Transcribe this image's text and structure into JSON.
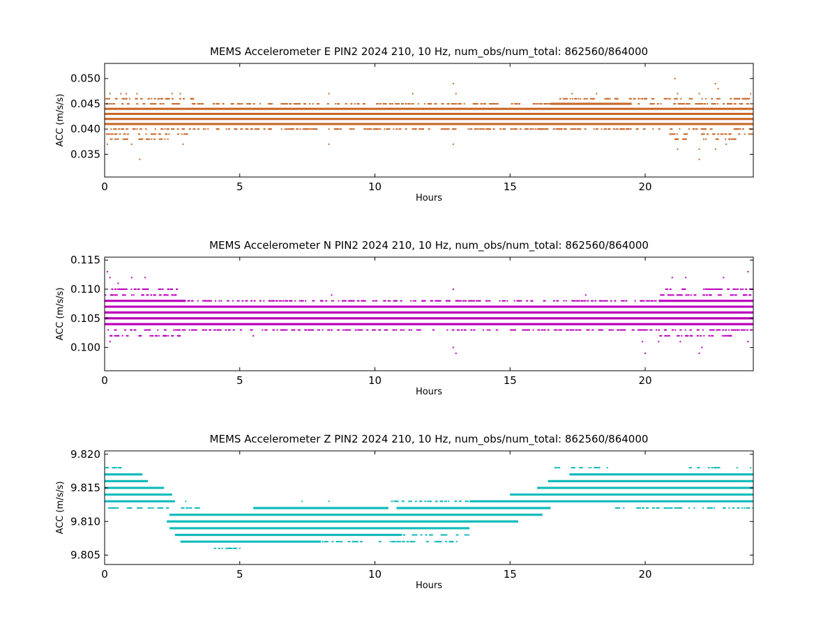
{
  "chart_data": [
    {
      "type": "scatter",
      "title": "MEMS Accelerometer E PIN2 2024 210, 10 Hz, num_obs/num_total: 862560/864000",
      "xlabel": "Hours",
      "ylabel": "ACC (m/s/s)",
      "xlim": [
        0,
        24
      ],
      "ylim": [
        0.0305,
        0.053
      ],
      "xticks": [
        0,
        5,
        10,
        15,
        20
      ],
      "yticks": [
        "0.035",
        "0.040",
        "0.045",
        "0.050"
      ],
      "color": "#c8682a",
      "grid": false,
      "dense_bands": [
        {
          "y": 0.041,
          "x": [
            0,
            24
          ]
        },
        {
          "y": 0.042,
          "x": [
            0,
            24
          ]
        },
        {
          "y": 0.043,
          "x": [
            0,
            24
          ]
        },
        {
          "y": 0.044,
          "x": [
            0,
            24
          ]
        },
        {
          "y": 0.045,
          "x": [
            16.5,
            19.5
          ]
        }
      ],
      "sparse_bands": [
        {
          "y": 0.04,
          "x": [
            0,
            24
          ]
        },
        {
          "y": 0.045,
          "x": [
            0,
            24
          ]
        },
        {
          "y": 0.039,
          "x": [
            0,
            3
          ]
        },
        {
          "y": 0.039,
          "x": [
            20.8,
            24
          ]
        },
        {
          "y": 0.046,
          "x": [
            0,
            3.5
          ]
        },
        {
          "y": 0.046,
          "x": [
            16.8,
            24
          ]
        },
        {
          "y": 0.038,
          "x": [
            0,
            2.5
          ]
        },
        {
          "y": 0.038,
          "x": [
            21,
            23.5
          ]
        }
      ],
      "outliers": [
        {
          "x": 0.2,
          "y": 0.047
        },
        {
          "x": 0.6,
          "y": 0.047
        },
        {
          "x": 0.8,
          "y": 0.047
        },
        {
          "x": 1.2,
          "y": 0.047
        },
        {
          "x": 1.3,
          "y": 0.034
        },
        {
          "x": 1.0,
          "y": 0.037
        },
        {
          "x": 0.1,
          "y": 0.037
        },
        {
          "x": 2.5,
          "y": 0.047
        },
        {
          "x": 2.8,
          "y": 0.047
        },
        {
          "x": 2.9,
          "y": 0.037
        },
        {
          "x": 8.3,
          "y": 0.047
        },
        {
          "x": 8.3,
          "y": 0.037
        },
        {
          "x": 11.4,
          "y": 0.047
        },
        {
          "x": 12.9,
          "y": 0.049
        },
        {
          "x": 12.9,
          "y": 0.037
        },
        {
          "x": 13.0,
          "y": 0.047
        },
        {
          "x": 17.3,
          "y": 0.047
        },
        {
          "x": 18.2,
          "y": 0.047
        },
        {
          "x": 21.1,
          "y": 0.05
        },
        {
          "x": 21.2,
          "y": 0.036
        },
        {
          "x": 21.2,
          "y": 0.047
        },
        {
          "x": 22.0,
          "y": 0.034
        },
        {
          "x": 22.0,
          "y": 0.036
        },
        {
          "x": 22.0,
          "y": 0.047
        },
        {
          "x": 22.6,
          "y": 0.049
        },
        {
          "x": 22.6,
          "y": 0.036
        },
        {
          "x": 22.7,
          "y": 0.048
        },
        {
          "x": 23.0,
          "y": 0.037
        },
        {
          "x": 23.9,
          "y": 0.047
        }
      ]
    },
    {
      "type": "scatter",
      "title": "MEMS Accelerometer N PIN2 2024 210, 10 Hz, num_obs/num_total: 862560/864000",
      "xlabel": "Hours",
      "ylabel": "ACC (m/s/s)",
      "xlim": [
        0,
        24
      ],
      "ylim": [
        0.096,
        0.1155
      ],
      "xticks": [
        0,
        5,
        10,
        15,
        20
      ],
      "yticks": [
        "0.100",
        "0.105",
        "0.110",
        "0.115"
      ],
      "color": "#bb00bb",
      "grid": false,
      "dense_bands": [
        {
          "y": 0.104,
          "x": [
            0,
            24
          ]
        },
        {
          "y": 0.105,
          "x": [
            0,
            24
          ]
        },
        {
          "y": 0.106,
          "x": [
            0,
            24
          ]
        },
        {
          "y": 0.107,
          "x": [
            0,
            24
          ]
        },
        {
          "y": 0.108,
          "x": [
            0,
            3
          ],
          "fade": 4.5
        },
        {
          "y": 0.108,
          "x": [
            20.5,
            24
          ],
          "fade": 19
        }
      ],
      "sparse_bands": [
        {
          "y": 0.103,
          "x": [
            0,
            24
          ]
        },
        {
          "y": 0.108,
          "x": [
            0,
            24
          ]
        },
        {
          "y": 0.109,
          "x": [
            0,
            3
          ]
        },
        {
          "y": 0.109,
          "x": [
            20.5,
            24
          ]
        },
        {
          "y": 0.102,
          "x": [
            0,
            2.8
          ]
        },
        {
          "y": 0.102,
          "x": [
            20.5,
            23.2
          ]
        },
        {
          "y": 0.11,
          "x": [
            0,
            2.8
          ]
        },
        {
          "y": 0.11,
          "x": [
            20.5,
            24
          ]
        }
      ],
      "outliers": [
        {
          "x": 0.1,
          "y": 0.113
        },
        {
          "x": 0.2,
          "y": 0.112
        },
        {
          "x": 0.5,
          "y": 0.111
        },
        {
          "x": 1.0,
          "y": 0.112
        },
        {
          "x": 1.5,
          "y": 0.112
        },
        {
          "x": 0.2,
          "y": 0.101
        },
        {
          "x": 5.5,
          "y": 0.102
        },
        {
          "x": 8.4,
          "y": 0.109
        },
        {
          "x": 12.9,
          "y": 0.11
        },
        {
          "x": 12.9,
          "y": 0.1
        },
        {
          "x": 13.0,
          "y": 0.099
        },
        {
          "x": 17.8,
          "y": 0.109
        },
        {
          "x": 19.9,
          "y": 0.101
        },
        {
          "x": 20.0,
          "y": 0.099
        },
        {
          "x": 20.5,
          "y": 0.101
        },
        {
          "x": 21.0,
          "y": 0.112
        },
        {
          "x": 21.3,
          "y": 0.101
        },
        {
          "x": 21.5,
          "y": 0.112
        },
        {
          "x": 22.0,
          "y": 0.099
        },
        {
          "x": 22.1,
          "y": 0.1
        },
        {
          "x": 22.9,
          "y": 0.112
        },
        {
          "x": 23.8,
          "y": 0.113
        },
        {
          "x": 23.8,
          "y": 0.101
        }
      ]
    },
    {
      "type": "scatter",
      "title": "MEMS Accelerometer Z PIN2 2024 210, 10 Hz, num_obs/num_total: 862560/864000",
      "xlabel": "Hours",
      "ylabel": "ACC (m/s/s)",
      "xlim": [
        0,
        24
      ],
      "ylim": [
        9.8036,
        9.8205
      ],
      "xticks": [
        0,
        5,
        10,
        15,
        20
      ],
      "yticks": [
        "9.805",
        "9.810",
        "9.815",
        "9.820"
      ],
      "color": "#11bbbb",
      "grid": false,
      "dense_bands": [
        {
          "y": 9.817,
          "x": [
            17.2,
            24
          ]
        },
        {
          "y": 9.816,
          "x": [
            16.4,
            24
          ]
        },
        {
          "y": 9.815,
          "x": [
            16.0,
            24
          ]
        },
        {
          "y": 9.814,
          "x": [
            15.0,
            24
          ]
        },
        {
          "y": 9.813,
          "x": [
            13.5,
            24
          ]
        },
        {
          "y": 9.812,
          "x": [
            10.8,
            16.5
          ]
        },
        {
          "y": 9.811,
          "x": [
            2.4,
            16.2
          ],
          "fade_low": 4
        },
        {
          "y": 9.81,
          "x": [
            2.3,
            15.3
          ]
        },
        {
          "y": 9.809,
          "x": [
            2.4,
            13.5
          ]
        },
        {
          "y": 9.808,
          "x": [
            2.6,
            11.0
          ]
        },
        {
          "y": 9.807,
          "x": [
            2.8,
            8.0
          ]
        },
        {
          "y": 9.817,
          "x": [
            0,
            1.4
          ]
        },
        {
          "y": 9.816,
          "x": [
            0,
            1.6
          ]
        },
        {
          "y": 9.815,
          "x": [
            0,
            2.2
          ]
        },
        {
          "y": 9.814,
          "x": [
            0,
            2.5
          ]
        },
        {
          "y": 9.813,
          "x": [
            0,
            2.6
          ]
        },
        {
          "y": 9.812,
          "x": [
            5.5,
            10.5
          ]
        }
      ],
      "sparse_bands": [
        {
          "y": 9.818,
          "x": [
            16.6,
            18.3
          ]
        },
        {
          "y": 9.818,
          "x": [
            21.5,
            22.8
          ]
        },
        {
          "y": 9.818,
          "x": [
            0,
            0.6
          ]
        },
        {
          "y": 9.812,
          "x": [
            0,
            3.5
          ]
        },
        {
          "y": 9.812,
          "x": [
            18.8,
            24
          ]
        },
        {
          "y": 9.807,
          "x": [
            8.0,
            13.0
          ]
        },
        {
          "y": 9.806,
          "x": [
            3.8,
            5.0
          ]
        },
        {
          "y": 9.808,
          "x": [
            11.0,
            13.5
          ]
        },
        {
          "y": 9.813,
          "x": [
            10.5,
            13.5
          ]
        }
      ],
      "outliers": [
        {
          "x": 0.6,
          "y": 9.818
        },
        {
          "x": 18.6,
          "y": 9.818
        },
        {
          "x": 23.4,
          "y": 9.818
        },
        {
          "x": 23.9,
          "y": 9.818
        },
        {
          "x": 7.3,
          "y": 9.813
        },
        {
          "x": 8.3,
          "y": 9.813
        },
        {
          "x": 4.6,
          "y": 9.806
        },
        {
          "x": 5.0,
          "y": 9.806
        },
        {
          "x": 12.8,
          "y": 9.807
        },
        {
          "x": 3.0,
          "y": 9.813
        }
      ]
    }
  ]
}
